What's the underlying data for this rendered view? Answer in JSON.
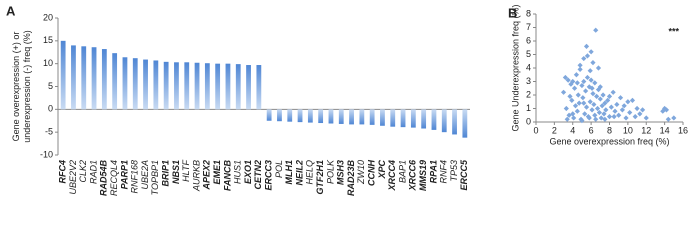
{
  "chart_data": [
    {
      "type": "bar",
      "panel_label": "A",
      "ylabel": [
        "Gene overexpression (+) or",
        "underexpression (-) freq (%)"
      ],
      "categories": [
        "RFC4",
        "UBE2V2",
        "CLK2",
        "RAD1",
        "RAD54B",
        "RECQL4",
        "PARP1",
        "RNF168",
        "UBE2A",
        "TOPBP1",
        "BRIP1",
        "NBS1",
        "HLTF",
        "AURKB",
        "APEX2",
        "EME1",
        "FANCB",
        "HUS1",
        "EXO1",
        "CETN2",
        "ERCC3",
        "POL",
        "MLH1",
        "NEIL2",
        "HELQ",
        "GTF2H1",
        "POLK",
        "MSH3",
        "RAD23B",
        "ZW10",
        "CCNH",
        "XPC",
        "XRCC4",
        "BAP1",
        "XRCC6",
        "MMS19",
        "RPA1",
        "RNF4",
        "TP53",
        "ERCC5"
      ],
      "label_bold": [
        true,
        false,
        false,
        false,
        true,
        false,
        true,
        false,
        false,
        false,
        true,
        true,
        false,
        false,
        true,
        true,
        true,
        false,
        true,
        true,
        true,
        false,
        true,
        true,
        false,
        true,
        false,
        true,
        true,
        false,
        true,
        true,
        true,
        false,
        true,
        true,
        true,
        false,
        false,
        true
      ],
      "values": [
        15,
        14,
        13.8,
        13.6,
        13.2,
        12.3,
        11.4,
        11.2,
        10.9,
        10.7,
        10.4,
        10.3,
        10.3,
        10.2,
        10.1,
        10,
        10,
        9.9,
        9.7,
        9.7,
        -2.5,
        -2.6,
        -2.7,
        -2.8,
        -2.9,
        -3,
        -3.1,
        -3.2,
        -3.3,
        -3.3,
        -3.4,
        -3.6,
        -3.8,
        -3.9,
        -4,
        -4.2,
        -4.5,
        -5,
        -5.5,
        -6.2
      ],
      "color": "#5b8fd6",
      "ylim": [
        -10,
        20
      ],
      "yticks": [
        -10,
        -5,
        0,
        5,
        10,
        15,
        20
      ],
      "grid": false
    },
    {
      "type": "scatter",
      "panel_label": "B",
      "annotation": "***",
      "xlabel": "Gene overexpression freq (%)",
      "ylabel": "Gene Underexpression freq (%)",
      "x": [
        3.0,
        3.2,
        3.3,
        3.5,
        3.6,
        3.8,
        3.9,
        4.0,
        4.1,
        4.2,
        4.3,
        4.4,
        4.5,
        4.6,
        4.7,
        4.8,
        4.9,
        5.0,
        5.1,
        5.2,
        5.3,
        5.4,
        5.5,
        5.6,
        5.7,
        5.8,
        5.9,
        6.0,
        6.1,
        6.2,
        6.3,
        6.4,
        6.5,
        6.6,
        6.7,
        6.8,
        6.9,
        7.0,
        7.1,
        7.2,
        7.3,
        7.4,
        7.5,
        7.6,
        7.8,
        8.0,
        8.2,
        8.4,
        8.6,
        8.8,
        9.0,
        9.2,
        9.4,
        9.6,
        9.8,
        10.0,
        10.2,
        10.5,
        10.8,
        11.0,
        11.3,
        11.6,
        12.0,
        13.8,
        14.0,
        14.2,
        14.4,
        15.0,
        5.5,
        6.0,
        6.5,
        5.2,
        6.2,
        4.8,
        5.6,
        6.8,
        5.9,
        3.4,
        3.7,
        4.0,
        4.5,
        5.0,
        5.2,
        5.8,
        6.1,
        6.4,
        7.0,
        7.5,
        8.0,
        8.5
      ],
      "y": [
        2.2,
        3.3,
        1.0,
        3.1,
        0.5,
        2.8,
        1.6,
        3.0,
        0.3,
        2.5,
        1.2,
        3.5,
        0.8,
        2.0,
        1.4,
        3.9,
        0.2,
        2.7,
        1.8,
        3.0,
        0.6,
        2.3,
        1.1,
        3.3,
        0.4,
        2.6,
        1.5,
        3.1,
        0.9,
        2.1,
        1.3,
        2.9,
        0.2,
        1.9,
        1.0,
        2.4,
        0.7,
        1.7,
        0.3,
        1.2,
        2.0,
        0.6,
        1.4,
        0.9,
        1.6,
        0.4,
        1.1,
        2.2,
        0.8,
        1.3,
        0.5,
        1.8,
        0.9,
        1.2,
        0.3,
        1.5,
        0.7,
        1.6,
        0.4,
        1.0,
        0.6,
        0.9,
        0.3,
        0.8,
        1.0,
        0.9,
        0.2,
        0.3,
        5.6,
        5.2,
        6.8,
        4.7,
        4.4,
        4.2,
        4.9,
        4.0,
        3.8,
        0.2,
        1.9,
        0.6,
        2.9,
        0.1,
        1.4,
        0.3,
        2.5,
        0.5,
        2.6,
        0.2,
        1.9,
        0.4
      ],
      "color": "#7fa7dc",
      "xlim": [
        0,
        16
      ],
      "xticks": [
        0,
        2,
        4,
        6,
        8,
        10,
        12,
        14,
        16
      ],
      "ylim": [
        0,
        8
      ],
      "yticks": [
        0,
        1,
        2,
        3,
        4,
        5,
        6,
        7,
        8
      ],
      "grid": false
    }
  ]
}
